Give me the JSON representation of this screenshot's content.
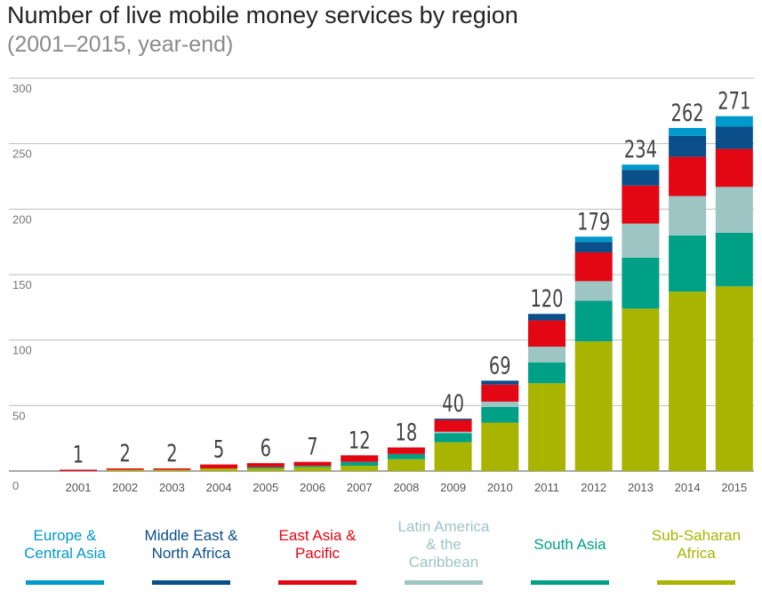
{
  "header": {
    "title": "Number of live mobile money services by region",
    "subtitle": "(2001–2015, year-end)"
  },
  "chart_data": {
    "type": "bar",
    "stacked": true,
    "title": "Number of live mobile money services by region",
    "subtitle": "(2001–2015, year-end)",
    "xlabel": "",
    "ylabel": "",
    "ylim": [
      0,
      300
    ],
    "yticks": [
      0,
      50,
      100,
      150,
      200,
      250,
      300
    ],
    "grid": true,
    "legend_position": "bottom",
    "categories": [
      "2001",
      "2002",
      "2003",
      "2004",
      "2005",
      "2006",
      "2007",
      "2008",
      "2009",
      "2010",
      "2011",
      "2012",
      "2013",
      "2014",
      "2015"
    ],
    "totals": [
      1,
      2,
      2,
      5,
      6,
      7,
      12,
      18,
      40,
      69,
      120,
      179,
      234,
      262,
      271
    ],
    "series": [
      {
        "name": "Sub-Saharan Africa",
        "color": "#a8b400",
        "values": [
          0,
          1,
          1,
          2,
          2,
          3,
          4,
          9,
          22,
          37,
          67,
          99,
          124,
          137,
          141
        ]
      },
      {
        "name": "South Asia",
        "color": "#00a087",
        "values": [
          0,
          0,
          0,
          0,
          1,
          1,
          3,
          4,
          7,
          12,
          16,
          31,
          39,
          43,
          41
        ]
      },
      {
        "name": "Latin America & the Caribbean",
        "color": "#9cc5c3",
        "values": [
          0,
          0,
          0,
          0,
          0,
          0,
          0,
          0,
          1,
          4,
          12,
          15,
          26,
          30,
          35
        ]
      },
      {
        "name": "East Asia & Pacific",
        "color": "#e30613",
        "values": [
          1,
          1,
          1,
          3,
          3,
          3,
          5,
          5,
          9,
          13,
          20,
          22,
          29,
          30,
          29
        ]
      },
      {
        "name": "Middle East & North Africa",
        "color": "#0a4f8a",
        "values": [
          0,
          0,
          0,
          0,
          0,
          0,
          0,
          0,
          1,
          3,
          5,
          8,
          12,
          16,
          17
        ]
      },
      {
        "name": "Europe & Central Asia",
        "color": "#0099cc",
        "values": [
          0,
          0,
          0,
          0,
          0,
          0,
          0,
          0,
          0,
          0,
          0,
          4,
          4,
          6,
          8
        ]
      }
    ]
  },
  "legend": [
    {
      "label": "Europe & Central Asia",
      "line1": "Europe &",
      "line2": "Central Asia",
      "line3": "",
      "color": "#0099cc"
    },
    {
      "label": "Middle East & North Africa",
      "line1": "Middle East &",
      "line2": "North Africa",
      "line3": "",
      "color": "#0a4f8a"
    },
    {
      "label": "East Asia & Pacific",
      "line1": "East Asia &",
      "line2": "Pacific",
      "line3": "",
      "color": "#e30613"
    },
    {
      "label": "Latin America & the Caribbean",
      "line1": "Latin America",
      "line2": "& the",
      "line3": "Caribbean",
      "color": "#9cc5c3"
    },
    {
      "label": "South Asia",
      "line1": "South Asia",
      "line2": "",
      "line3": "",
      "color": "#00a087"
    },
    {
      "label": "Sub-Saharan Africa",
      "line1": "Sub-Saharan",
      "line2": "Africa",
      "line3": "",
      "color": "#a8b400"
    }
  ]
}
